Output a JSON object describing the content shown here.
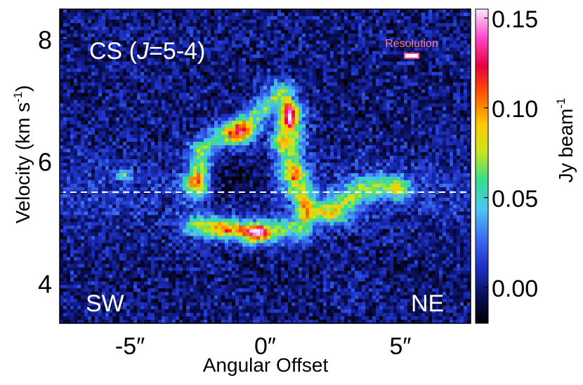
{
  "chart_data": {
    "type": "heatmap",
    "title": "CS (J=5-4)",
    "title_parts": [
      "CS (",
      "J",
      "=5-4)"
    ],
    "xlabel": "Angular Offset",
    "ylabel": "Velocity (km s",
    "ylabel_sup": "-1",
    "ylabel_close": ")",
    "xlim": [
      -7.6,
      7.6
    ],
    "ylim": [
      3.35,
      8.5
    ],
    "x_tick_values": [
      -5,
      0,
      5
    ],
    "x_tick_labels": [
      "-5″",
      "0″",
      "5″"
    ],
    "y_tick_values": [
      4,
      6,
      8
    ],
    "y_tick_labels": [
      "4",
      "6",
      "8"
    ],
    "corner_labels": {
      "left": "SW",
      "right": "NE"
    },
    "resolution_label": "Resolution",
    "reference_velocity": 5.5,
    "colorbar": {
      "label": "Jy beam",
      "label_sup": "-1",
      "range": [
        -0.02,
        0.155
      ],
      "tick_values": [
        0.0,
        0.05,
        0.1,
        0.15
      ],
      "tick_labels": [
        "0.00",
        "0.05",
        "0.10",
        "0.15"
      ],
      "colors": [
        "#000000",
        "#0a0f5a",
        "#1e32c8",
        "#3c6ef0",
        "#4cc6f0",
        "#33dd8c",
        "#c8e61e",
        "#ffc800",
        "#ff5a00",
        "#e6003c",
        "#ff46c8",
        "#ffe6ff"
      ]
    },
    "emission_structures": [
      {
        "name": "northern arc",
        "x_range": [
          -2.7,
          1.0
        ],
        "v_range": [
          5.6,
          7.3
        ],
        "peak_jy_beam": 0.13,
        "peak_x": -0.9,
        "peak_v": 6.45
      },
      {
        "name": "northern arc tip",
        "peak_jy_beam": 0.15,
        "peak_x": 0.9,
        "peak_v": 6.75
      },
      {
        "name": "western knot",
        "peak_jy_beam": 0.1,
        "peak_x": -2.5,
        "peak_v": 5.6
      },
      {
        "name": "southern arc",
        "x_range": [
          -2.5,
          1.5
        ],
        "v_range": [
          4.6,
          5.2
        ],
        "peak_jy_beam": 0.15,
        "peak_x": -0.3,
        "peak_v": 4.85
      },
      {
        "name": "eastern tail",
        "x_range": [
          1.3,
          5.0
        ],
        "v_range": [
          5.0,
          5.7
        ],
        "peak_jy_beam": 0.06
      },
      {
        "name": "western small clump",
        "x": -5.2,
        "v": 5.77,
        "peak_jy_beam": 0.05
      }
    ]
  }
}
